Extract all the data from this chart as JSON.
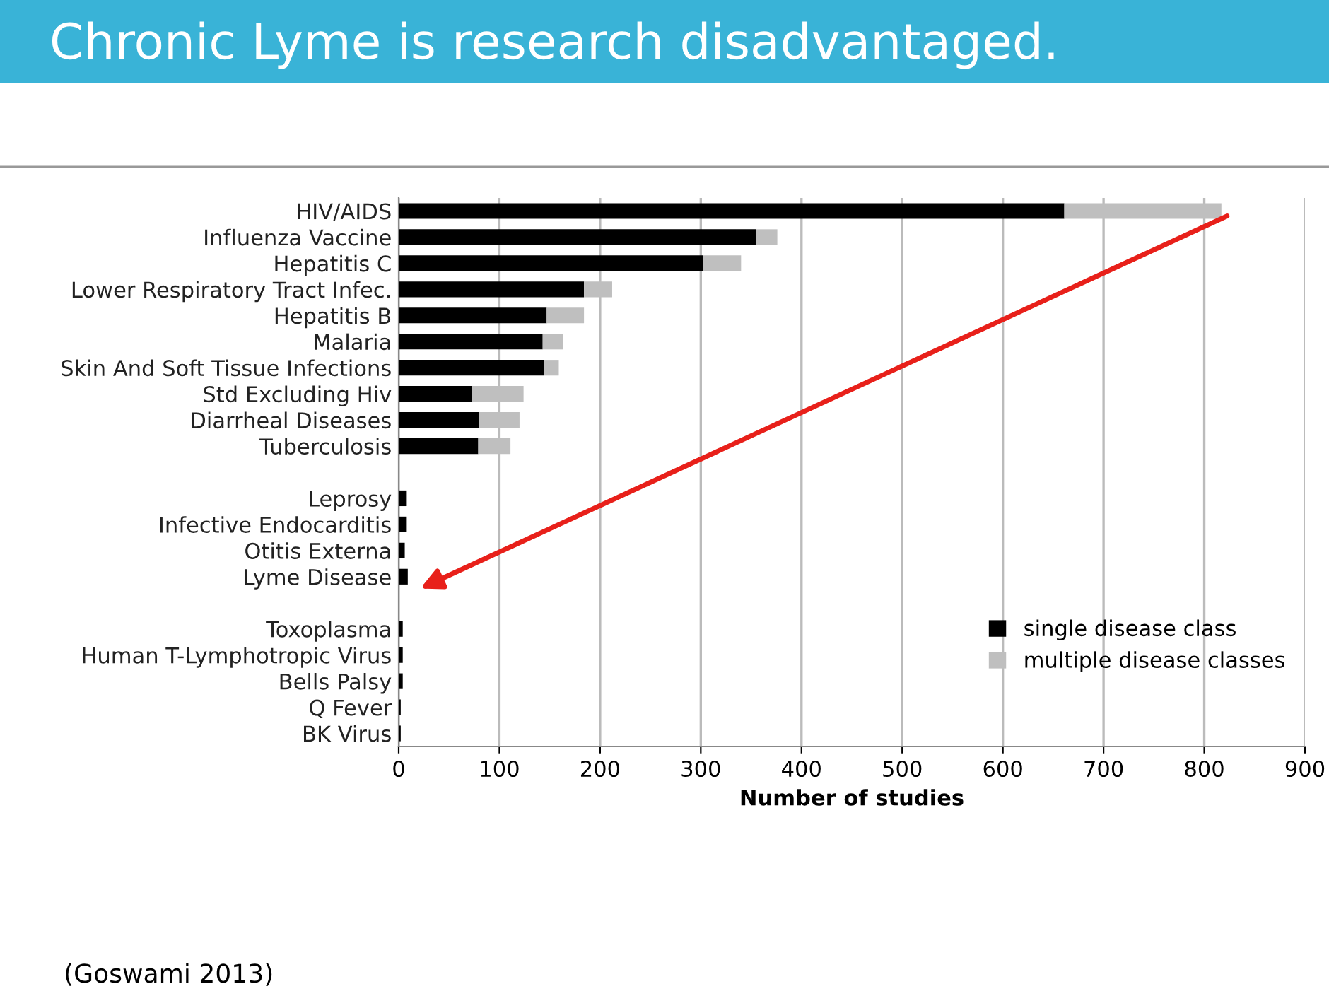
{
  "chart_data": {
    "type": "bar",
    "title": "Chronic Lyme is research disadvantaged.",
    "xlabel": "Number of studies",
    "orientation": "horizontal",
    "stacked": true,
    "grid": "x",
    "legend": "bottom right",
    "categories": [
      "HIV/AIDS",
      "Influenza Vaccine",
      "Hepatitis C",
      "Lower Respiratory Tract Infec.",
      "Hepatitis B",
      "Malaria",
      "Skin And Soft Tissue Infections",
      "Std Excluding Hiv",
      "Diarrheal Diseases",
      "Tuberculosis",
      null,
      "Leprosy",
      "Infective Endocarditis",
      "Otitis Externa",
      "Lyme Disease",
      null,
      "Toxoplasma",
      "Human T-Lymphotropic Virus",
      "Bells Palsy",
      "Q Fever",
      "BK Virus"
    ],
    "series": [
      {
        "name": "single disease class",
        "color": "#000000",
        "values": [
          661,
          355,
          302,
          184,
          147,
          143,
          144,
          73,
          80,
          79,
          null,
          8,
          8,
          6,
          9,
          null,
          4,
          4,
          4,
          2,
          2
        ]
      },
      {
        "name": "multiple disease classes",
        "color": "#bfbfbf",
        "values": [
          156,
          21,
          38,
          28,
          37,
          20,
          15,
          51,
          40,
          32,
          null,
          0,
          0,
          0,
          0,
          null,
          0,
          0,
          0,
          0,
          0
        ]
      }
    ],
    "xlim": [
      0,
      900
    ],
    "xticks": [
      0,
      100,
      200,
      300,
      400,
      500,
      600,
      700,
      800,
      900
    ],
    "annotations": [
      "(Goswami 2013)"
    ]
  }
}
